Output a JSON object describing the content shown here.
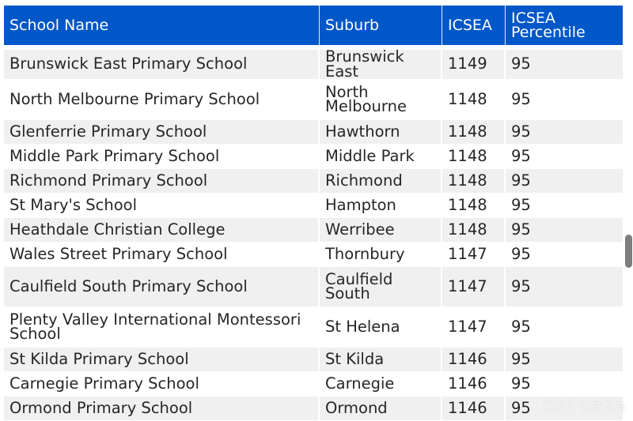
{
  "table": {
    "headers": {
      "school_name": "School Name",
      "suburb": "Suburb",
      "icsea": "ICSEA",
      "icsea_percentile": "ICSEA Percentile"
    },
    "rows": [
      {
        "school": "Brunswick East Primary School",
        "suburb": "Brunswick East",
        "icsea": "1149",
        "percentile": "95"
      },
      {
        "school": "North Melbourne Primary School",
        "suburb": "North Melbourne",
        "icsea": "1148",
        "percentile": "95"
      },
      {
        "school": "Glenferrie Primary School",
        "suburb": "Hawthorn",
        "icsea": "1148",
        "percentile": "95"
      },
      {
        "school": "Middle Park Primary School",
        "suburb": "Middle Park",
        "icsea": "1148",
        "percentile": "95"
      },
      {
        "school": "Richmond Primary School",
        "suburb": "Richmond",
        "icsea": "1148",
        "percentile": "95"
      },
      {
        "school": "St Mary's School",
        "suburb": "Hampton",
        "icsea": "1148",
        "percentile": "95"
      },
      {
        "school": "Heathdale Christian College",
        "suburb": "Werribee",
        "icsea": "1148",
        "percentile": "95"
      },
      {
        "school": "Wales Street Primary School",
        "suburb": "Thornbury",
        "icsea": "1147",
        "percentile": "95"
      },
      {
        "school": "Caulfield South Primary School",
        "suburb": "Caulfield South",
        "icsea": "1147",
        "percentile": "95"
      },
      {
        "school": "Plenty Valley International Montessori School",
        "suburb": "St Helena",
        "icsea": "1147",
        "percentile": "95"
      },
      {
        "school": "St Kilda Primary School",
        "suburb": "St Kilda",
        "icsea": "1146",
        "percentile": "95"
      },
      {
        "school": "Carnegie Primary School",
        "suburb": "Carnegie",
        "icsea": "1146",
        "percentile": "95"
      },
      {
        "school": "Ormond Primary School",
        "suburb": "Ormond",
        "icsea": "1146",
        "percentile": "95"
      }
    ]
  },
  "watermark": "Chi na2a",
  "colors": {
    "header_bg": "#0057c8",
    "row_shade": "#f0f0f0",
    "scrollbar": "#7d7d7d"
  }
}
